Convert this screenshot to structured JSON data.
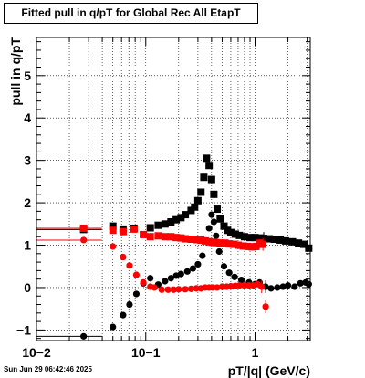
{
  "chart_data": {
    "type": "scatter",
    "title": "Fitted pull in q/pT for Global Rec All EtapT",
    "xlabel": "pT/|q| (GeV/c)",
    "ylabel": "pull in q/pT",
    "x_scale": "log",
    "xlim": [
      0.01,
      3.2
    ],
    "ylim": [
      -1.25,
      5.9
    ],
    "grid": true,
    "x_major_ticks": [
      0.01,
      0.1,
      1
    ],
    "x_tick_labels": [
      "10−2",
      "10−1",
      "1"
    ],
    "y_ticks": [
      -1,
      0,
      1,
      2,
      3,
      4,
      5
    ],
    "y_tick_labels": [
      "−1",
      "0",
      "1",
      "2",
      "3",
      "4",
      "5"
    ],
    "timestamp": "Sun Jun 29 06:42:46 2025",
    "series": [
      {
        "color": "#000000",
        "marker": "square",
        "points": [
          [
            0.027,
            1.37
          ],
          [
            0.05,
            1.45
          ],
          [
            0.062,
            1.38
          ],
          [
            0.078,
            1.4
          ],
          [
            0.11,
            1.41
          ],
          [
            0.13,
            1.47
          ],
          [
            0.15,
            1.5
          ],
          [
            0.17,
            1.55
          ],
          [
            0.19,
            1.6
          ],
          [
            0.21,
            1.65
          ],
          [
            0.23,
            1.72
          ],
          [
            0.26,
            1.82
          ],
          [
            0.28,
            1.9
          ],
          [
            0.3,
            2.05
          ],
          [
            0.32,
            2.25
          ],
          [
            0.34,
            2.6
          ],
          [
            0.36,
            3.05
          ],
          [
            0.38,
            2.88
          ],
          [
            0.4,
            2.55
          ],
          [
            0.42,
            2.2
          ],
          [
            0.45,
            1.85
          ],
          [
            0.48,
            1.62
          ],
          [
            0.52,
            1.45
          ],
          [
            0.56,
            1.35
          ],
          [
            0.6,
            1.3
          ],
          [
            0.66,
            1.26
          ],
          [
            0.72,
            1.23
          ],
          [
            0.8,
            1.2
          ],
          [
            0.9,
            1.18
          ],
          [
            1.0,
            1.18
          ],
          [
            1.1,
            1.17
          ],
          [
            1.2,
            1.16
          ],
          [
            1.35,
            1.15
          ],
          [
            1.5,
            1.14
          ],
          [
            1.7,
            1.12
          ],
          [
            1.9,
            1.1
          ],
          [
            2.2,
            1.08
          ],
          [
            2.5,
            1.05
          ],
          [
            2.8,
            1.02
          ],
          [
            3.1,
            0.93
          ]
        ]
      },
      {
        "color": "#000000",
        "marker": "circle",
        "points": [
          [
            0.027,
            -1.15
          ],
          [
            0.05,
            -0.93
          ],
          [
            0.062,
            -0.65
          ],
          [
            0.071,
            -0.4
          ],
          [
            0.082,
            -0.15
          ],
          [
            0.095,
            0.1
          ],
          [
            0.11,
            0.22
          ],
          [
            0.13,
            0.07
          ],
          [
            0.15,
            0.15
          ],
          [
            0.17,
            0.22
          ],
          [
            0.19,
            0.28
          ],
          [
            0.21,
            0.32
          ],
          [
            0.24,
            0.38
          ],
          [
            0.27,
            0.45
          ],
          [
            0.3,
            0.55
          ],
          [
            0.33,
            0.75
          ],
          [
            0.36,
            1.1
          ],
          [
            0.38,
            1.4
          ],
          [
            0.4,
            1.72
          ],
          [
            0.42,
            1.55
          ],
          [
            0.44,
            1.22
          ],
          [
            0.47,
            0.85
          ],
          [
            0.52,
            0.5
          ],
          [
            0.58,
            0.35
          ],
          [
            0.65,
            0.25
          ],
          [
            0.75,
            0.18
          ],
          [
            0.88,
            0.12
          ],
          [
            1.0,
            0.08
          ],
          [
            1.1,
            0.12
          ],
          [
            1.25,
            0.02
          ],
          [
            1.4,
            -0.02
          ],
          [
            1.6,
            0.0
          ],
          [
            1.8,
            0.02
          ],
          [
            2.0,
            0.05
          ],
          [
            2.3,
            0.02
          ],
          [
            2.6,
            0.1
          ],
          [
            2.9,
            0.12
          ],
          [
            3.1,
            0.08
          ]
        ]
      },
      {
        "color": "#ff0000",
        "marker": "square",
        "points": [
          [
            0.027,
            1.4
          ],
          [
            0.05,
            1.35
          ],
          [
            0.062,
            1.32
          ],
          [
            0.078,
            1.38
          ],
          [
            0.095,
            1.25
          ],
          [
            0.11,
            1.2
          ],
          [
            0.13,
            1.22
          ],
          [
            0.15,
            1.2
          ],
          [
            0.17,
            1.2
          ],
          [
            0.19,
            1.18
          ],
          [
            0.21,
            1.17
          ],
          [
            0.23,
            1.15
          ],
          [
            0.26,
            1.14
          ],
          [
            0.29,
            1.13
          ],
          [
            0.32,
            1.12
          ],
          [
            0.35,
            1.1
          ],
          [
            0.38,
            1.08
          ],
          [
            0.41,
            1.07
          ],
          [
            0.44,
            1.06
          ],
          [
            0.48,
            1.05
          ],
          [
            0.53,
            1.05
          ],
          [
            0.58,
            1.03
          ],
          [
            0.64,
            1.02
          ],
          [
            0.7,
            1.0
          ],
          [
            0.78,
            0.98
          ],
          [
            0.86,
            0.97
          ],
          [
            0.94,
            0.96
          ],
          [
            1.02,
            0.97
          ],
          [
            1.1,
            1.05
          ],
          [
            1.18,
            1.02
          ]
        ]
      },
      {
        "color": "#ff0000",
        "marker": "circle",
        "points": [
          [
            0.027,
            1.12
          ],
          [
            0.05,
            0.97
          ],
          [
            0.062,
            0.72
          ],
          [
            0.071,
            0.52
          ],
          [
            0.082,
            0.3
          ],
          [
            0.095,
            0.12
          ],
          [
            0.11,
            0.02
          ],
          [
            0.12,
            0.0
          ],
          [
            0.14,
            -0.05
          ],
          [
            0.16,
            -0.05
          ],
          [
            0.18,
            -0.05
          ],
          [
            0.2,
            -0.04
          ],
          [
            0.23,
            -0.04
          ],
          [
            0.26,
            -0.03
          ],
          [
            0.29,
            -0.02
          ],
          [
            0.32,
            -0.02
          ],
          [
            0.35,
            0.0
          ],
          [
            0.38,
            0.0
          ],
          [
            0.41,
            0.0
          ],
          [
            0.45,
            0.0
          ],
          [
            0.5,
            0.02
          ],
          [
            0.55,
            0.02
          ],
          [
            0.6,
            0.03
          ],
          [
            0.66,
            0.04
          ],
          [
            0.72,
            0.05
          ],
          [
            0.8,
            0.05
          ],
          [
            0.88,
            0.05
          ],
          [
            0.96,
            0.05
          ],
          [
            1.05,
            0.08
          ],
          [
            1.15,
            0.02
          ],
          [
            1.25,
            -0.45
          ]
        ]
      }
    ]
  }
}
